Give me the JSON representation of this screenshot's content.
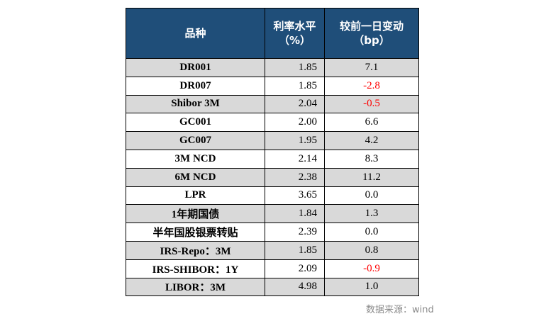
{
  "table": {
    "headers": {
      "variety": "品种",
      "rate_line1": "利率水平",
      "rate_line2": "（%）",
      "change_line1": "较前一日变动",
      "change_line2": "（bp）"
    },
    "rows": [
      {
        "name": "DR001",
        "rate": "1.85",
        "change": "7.1"
      },
      {
        "name": "DR007",
        "rate": "1.85",
        "change": "-2.8"
      },
      {
        "name": "Shibor 3M",
        "rate": "2.04",
        "change": "-0.5"
      },
      {
        "name": "GC001",
        "rate": "2.00",
        "change": "6.6"
      },
      {
        "name": "GC007",
        "rate": "1.95",
        "change": "4.2"
      },
      {
        "name": "3M NCD",
        "rate": "2.14",
        "change": "8.3"
      },
      {
        "name": "6M NCD",
        "rate": "2.38",
        "change": "11.2"
      },
      {
        "name": "LPR",
        "rate": "3.65",
        "change": "0.0"
      },
      {
        "name": "1年期国债",
        "rate": "1.84",
        "change": "1.3"
      },
      {
        "name": "半年国股银票转贴",
        "rate": "2.39",
        "change": "0.0"
      },
      {
        "name": "IRS-Repo：3M",
        "rate": "1.85",
        "change": "0.8"
      },
      {
        "name": "IRS-SHIBOR：1Y",
        "rate": "2.09",
        "change": "-0.9"
      },
      {
        "name": "LIBOR：3M",
        "rate": "4.98",
        "change": "1.0"
      }
    ],
    "negative_color": "#ff0000",
    "header_color": "#1f4e79",
    "shade_color": "#d9d9d9"
  },
  "source": "数据来源：wind"
}
